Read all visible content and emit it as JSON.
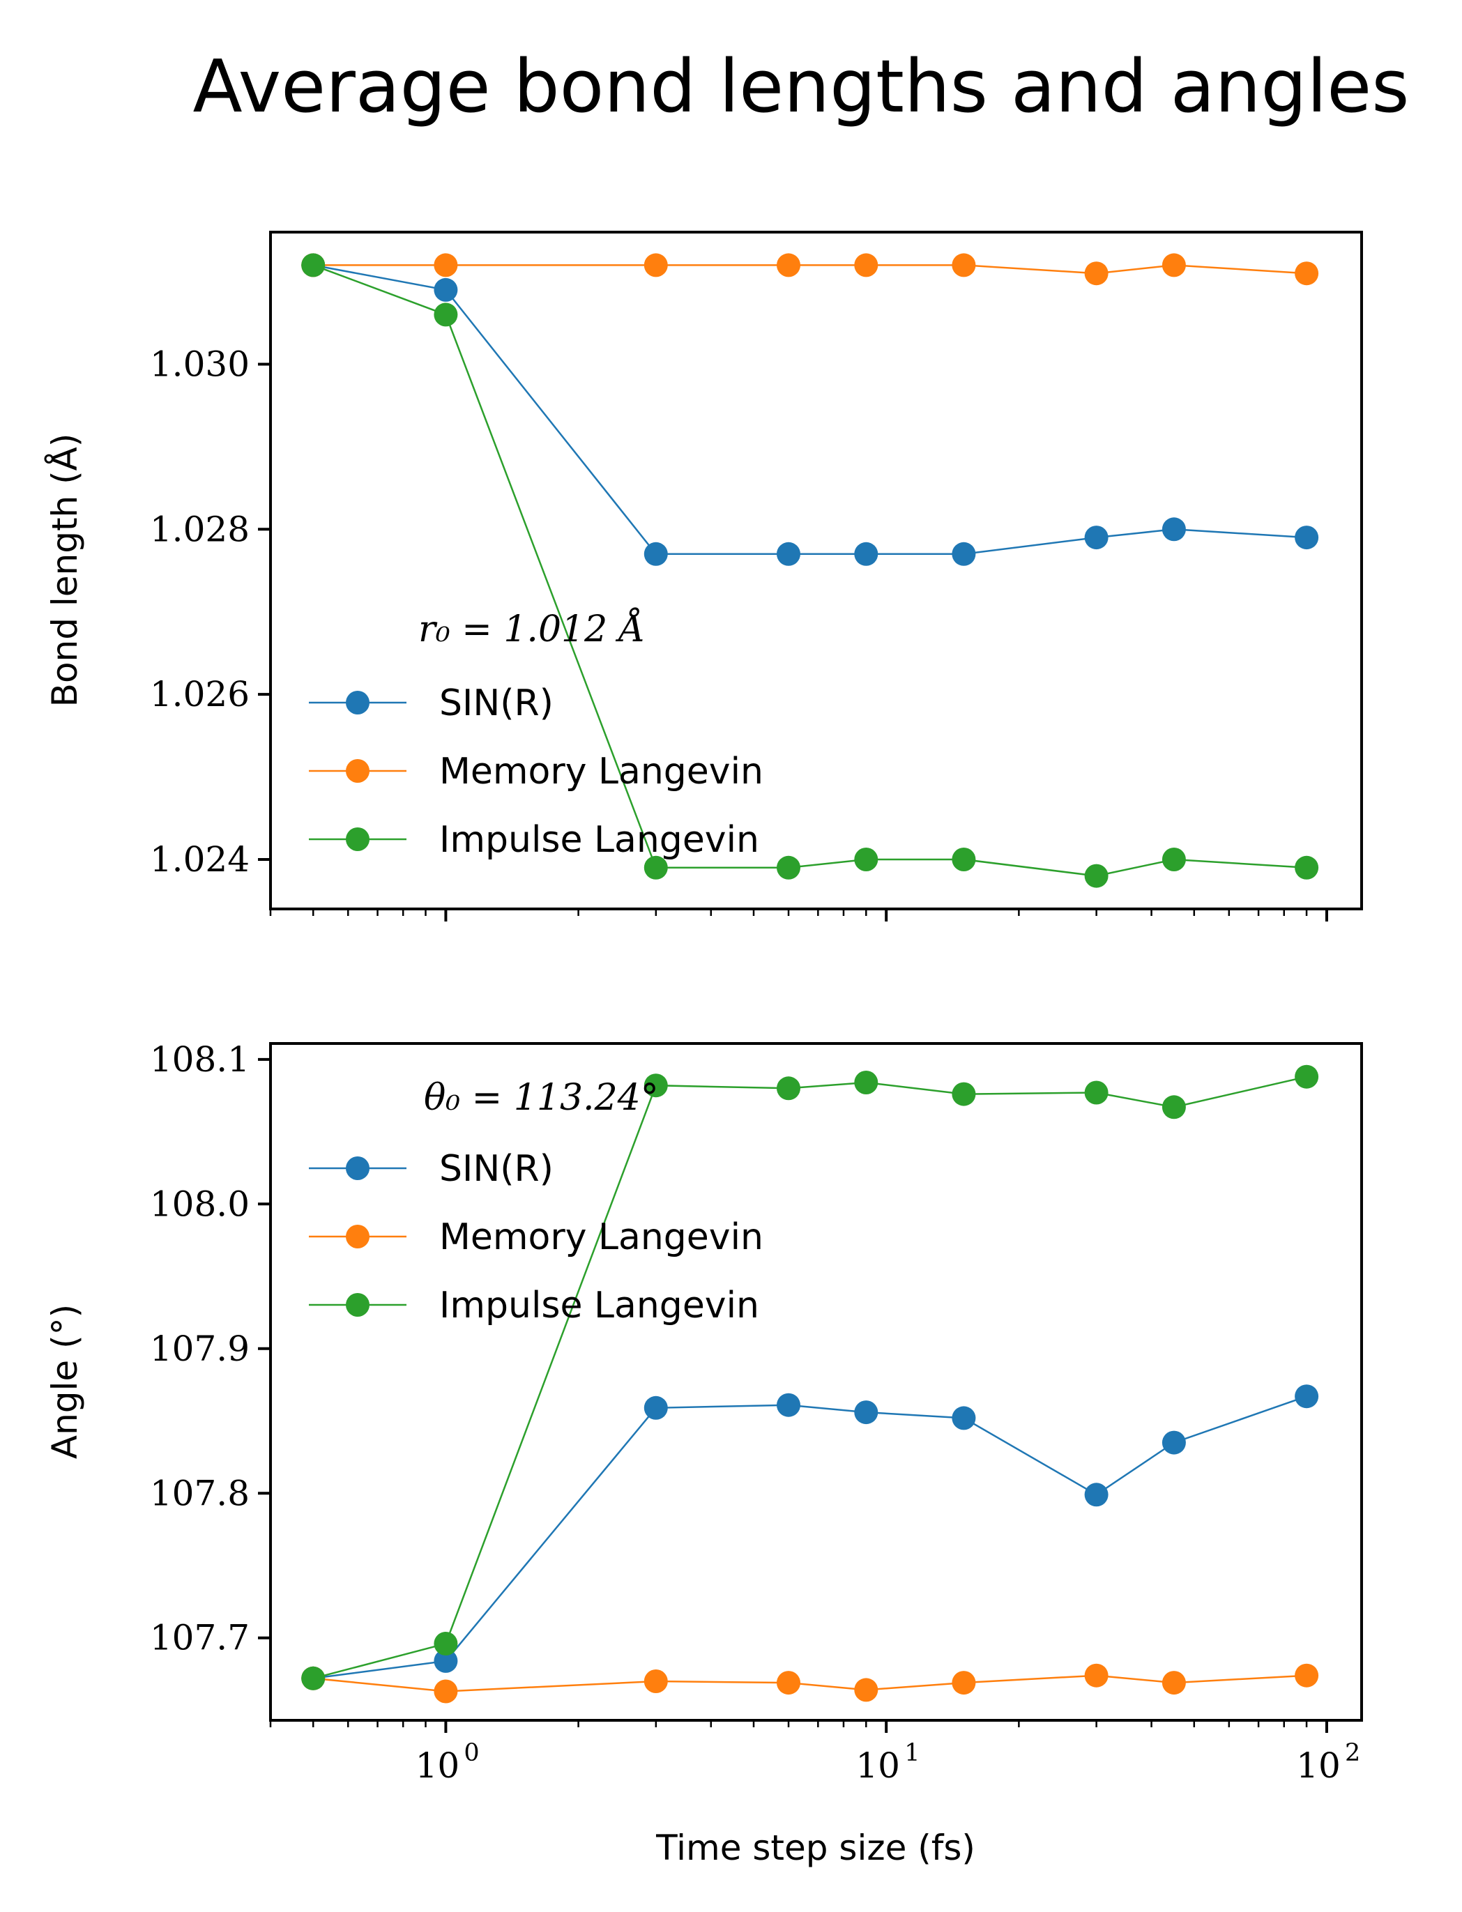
{
  "title": "Average bond lengths and angles",
  "colors": {
    "SIN(R)": "#1f77b4",
    "Memory Langevin": "#ff7f0e",
    "Impulse Langevin": "#2ca02c"
  },
  "chart_data": [
    {
      "type": "line",
      "xscale": "log",
      "xlim": [
        0.4,
        120
      ],
      "ylim": [
        1.0234,
        1.0316
      ],
      "xlabel": "",
      "ylabel": "Bond length (Å)",
      "yticks": [
        "1.024",
        "1.026",
        "1.028",
        "1.030"
      ],
      "ytick_values": [
        1.024,
        1.026,
        1.028,
        1.03
      ],
      "legend_title": "r₀ = 1.012 Å",
      "legend_position": "lower left",
      "x": [
        0.5,
        1,
        3,
        6,
        9,
        15,
        30,
        45,
        90
      ],
      "series": [
        {
          "name": "SIN(R)",
          "values": [
            1.0312,
            1.0309,
            1.0277,
            1.0277,
            1.0277,
            1.0277,
            1.0279,
            1.028,
            1.0279
          ]
        },
        {
          "name": "Memory Langevin",
          "values": [
            1.0312,
            1.0312,
            1.0312,
            1.0312,
            1.0312,
            1.0312,
            1.0311,
            1.0312,
            1.0311
          ]
        },
        {
          "name": "Impulse Langevin",
          "values": [
            1.0312,
            1.0306,
            1.0239,
            1.0239,
            1.024,
            1.024,
            1.0238,
            1.024,
            1.0239
          ]
        }
      ]
    },
    {
      "type": "line",
      "xscale": "log",
      "xlim": [
        0.4,
        120
      ],
      "ylim": [
        107.643,
        108.111
      ],
      "xlabel": "Time step size (fs)",
      "ylabel": "Angle (°)",
      "yticks": [
        "107.7",
        "107.8",
        "107.9",
        "108.0",
        "108.1"
      ],
      "ytick_values": [
        107.7,
        107.8,
        107.9,
        108.0,
        108.1
      ],
      "xticks": [
        {
          "base": "10",
          "exp": "0"
        },
        {
          "base": "10",
          "exp": "1"
        },
        {
          "base": "10",
          "exp": "2"
        }
      ],
      "xtick_values": [
        1,
        10,
        100
      ],
      "legend_title": "θ₀ = 113.24°",
      "legend_position": "upper left",
      "x": [
        0.5,
        1,
        3,
        6,
        9,
        15,
        30,
        45,
        90
      ],
      "series": [
        {
          "name": "SIN(R)",
          "values": [
            107.672,
            107.684,
            107.859,
            107.861,
            107.856,
            107.852,
            107.799,
            107.835,
            107.867
          ]
        },
        {
          "name": "Memory Langevin",
          "values": [
            107.672,
            107.663,
            107.67,
            107.669,
            107.664,
            107.669,
            107.674,
            107.669,
            107.674
          ]
        },
        {
          "name": "Impulse Langevin",
          "values": [
            107.672,
            107.696,
            108.082,
            108.08,
            108.084,
            108.076,
            108.077,
            108.067,
            108.088
          ]
        }
      ]
    }
  ]
}
